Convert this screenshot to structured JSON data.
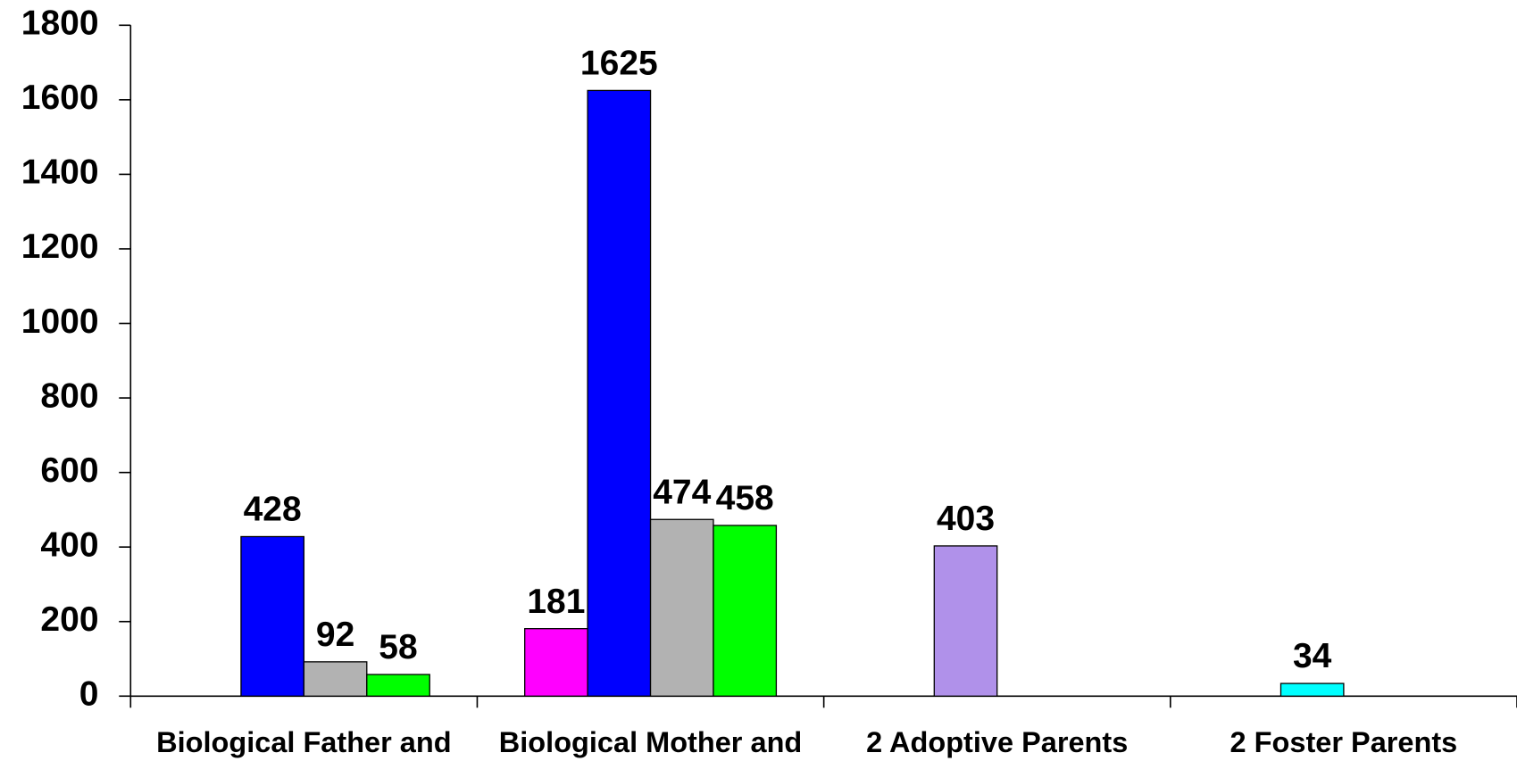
{
  "chart_data": {
    "type": "bar",
    "categories": [
      "Biological Father and",
      "Biological Mother and",
      "2 Adoptive Parents",
      "2 Foster Parents"
    ],
    "series": [
      {
        "color": "#ff00ff",
        "values": [
          null,
          181,
          null,
          null
        ]
      },
      {
        "color": "#0000ff",
        "values": [
          428,
          1625,
          null,
          null
        ]
      },
      {
        "color": "#b2b2b2",
        "values": [
          92,
          474,
          null,
          null
        ]
      },
      {
        "color": "#00ff00",
        "values": [
          58,
          458,
          null,
          null
        ]
      },
      {
        "color": "#b091ea",
        "values": [
          null,
          null,
          403,
          null
        ]
      },
      {
        "color": "#00ffff",
        "values": [
          null,
          null,
          null,
          34
        ]
      }
    ],
    "ylim": [
      0,
      1800
    ],
    "yticks": [
      0,
      200,
      400,
      600,
      800,
      1000,
      1200,
      1400,
      1600,
      1800
    ]
  }
}
